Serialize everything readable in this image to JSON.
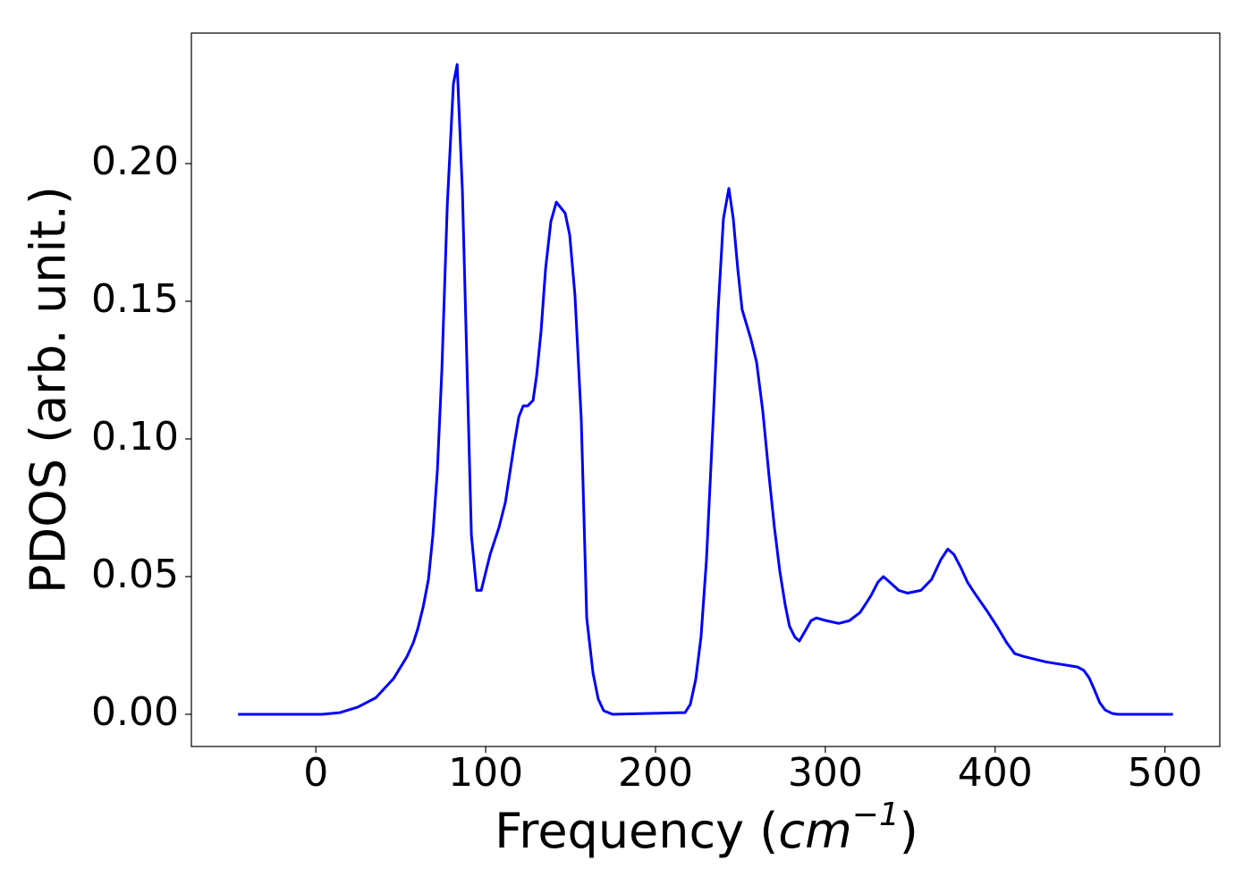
{
  "chart_data": {
    "type": "line",
    "xlabel": [
      "Frequency (",
      "cm",
      "−1",
      ")"
    ],
    "ylabel": "PDOS (arb. unit.)",
    "xlim": [
      -73.3,
      532.3
    ],
    "ylim": [
      -0.0117,
      0.2474
    ],
    "xticks": [
      0,
      100,
      200,
      300,
      400,
      500
    ],
    "yticks": [
      {
        "value": 0,
        "label": "0.00"
      },
      {
        "value": 0.05,
        "label": "0.05"
      },
      {
        "value": 0.1,
        "label": "0.10"
      },
      {
        "value": 0.15,
        "label": "0.15"
      },
      {
        "value": 0.2,
        "label": "0.20"
      }
    ],
    "x": [
      -45.8,
      3.7,
      14.2,
      24.7,
      35.3,
      45.8,
      53.7,
      57.4,
      60,
      63.2,
      66.3,
      68.9,
      71.6,
      74.2,
      77.4,
      81,
      83.2,
      86.3,
      91.6,
      94.7,
      97.4,
      102.6,
      107.9,
      111.6,
      116.8,
      119.5,
      122.1,
      124.7,
      127.9,
      130,
      132.6,
      135.3,
      138.4,
      141.6,
      146.8,
      149.5,
      152.6,
      156.3,
      159.5,
      163.2,
      166.3,
      169.5,
      174.7,
      217.4,
      220.5,
      223.7,
      226.8,
      230,
      234.2,
      236.8,
      240,
      243.2,
      245.8,
      248.4,
      251,
      256.3,
      259.5,
      263.2,
      266.8,
      270,
      273.2,
      276.3,
      278.9,
      282.1,
      284.7,
      287.9,
      291.6,
      294.7,
      300.5,
      307.9,
      314.2,
      320.5,
      326.8,
      331,
      334.2,
      337.9,
      343.2,
      348.4,
      356.3,
      362.6,
      367.9,
      372.1,
      375.8,
      380,
      383.7,
      387.9,
      395.8,
      401,
      406.8,
      411.6,
      416.8,
      430,
      448.4,
      452.1,
      455.3,
      458.4,
      461.6,
      464.7,
      468.9,
      472,
      504.7
    ],
    "series": [
      {
        "color": "#0000ff",
        "values": [
          0,
          0,
          0.0006,
          0.0026,
          0.006,
          0.013,
          0.021,
          0.026,
          0.031,
          0.039,
          0.049,
          0.065,
          0.089,
          0.125,
          0.185,
          0.229,
          0.236,
          0.19,
          0.065,
          0.045,
          0.045,
          0.058,
          0.068,
          0.077,
          0.098,
          0.108,
          0.112,
          0.112,
          0.114,
          0.123,
          0.139,
          0.162,
          0.179,
          0.186,
          0.182,
          0.174,
          0.152,
          0.107,
          0.035,
          0.015,
          0.0055,
          0.0013,
          0,
          0.0006,
          0.0036,
          0.0127,
          0.028,
          0.056,
          0.11,
          0.146,
          0.18,
          0.191,
          0.18,
          0.162,
          0.147,
          0.136,
          0.128,
          0.11,
          0.087,
          0.068,
          0.052,
          0.04,
          0.032,
          0.028,
          0.0266,
          0.03,
          0.034,
          0.035,
          0.034,
          0.033,
          0.034,
          0.037,
          0.043,
          0.048,
          0.05,
          0.048,
          0.045,
          0.044,
          0.045,
          0.049,
          0.056,
          0.06,
          0.058,
          0.053,
          0.048,
          0.044,
          0.037,
          0.032,
          0.026,
          0.022,
          0.021,
          0.019,
          0.0172,
          0.016,
          0.0133,
          0.009,
          0.0042,
          0.0016,
          0.0003,
          0,
          0
        ]
      }
    ]
  }
}
